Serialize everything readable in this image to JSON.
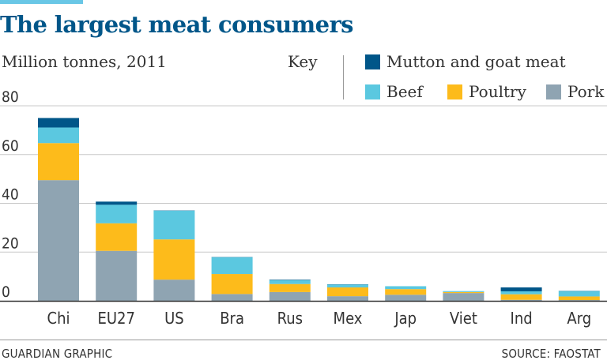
{
  "header": {
    "title": "The largest meat consumers",
    "subtitle": "Million tonnes, 2011",
    "key_label": "Key"
  },
  "legend": [
    {
      "label": "Mutton and goat meat",
      "color": "#005689"
    },
    {
      "label": "Beef",
      "color": "#5bc8e0"
    },
    {
      "label": "Poultry",
      "color": "#fdbb1b"
    },
    {
      "label": "Pork",
      "color": "#8fa4b2"
    }
  ],
  "footer": {
    "credit": "GUARDIAN GRAPHIC",
    "source": "SOURCE: FAOSTAT"
  },
  "chart_data": {
    "type": "bar",
    "stacked": true,
    "categories": [
      "Chi",
      "EU27",
      "US",
      "Bra",
      "Rus",
      "Mex",
      "Jap",
      "Viet",
      "Ind",
      "Arg"
    ],
    "series": [
      {
        "name": "Pork",
        "color": "#8fa4b2",
        "values": [
          49.5,
          20.5,
          8.7,
          2.8,
          3.6,
          1.9,
          2.5,
          3.2,
          0.4,
          0.3
        ]
      },
      {
        "name": "Poultry",
        "color": "#fdbb1b",
        "values": [
          15.2,
          11.3,
          16.5,
          8.2,
          3.3,
          3.6,
          2.3,
          0.4,
          2.3,
          1.5
        ]
      },
      {
        "name": "Beef",
        "color": "#5bc8e0",
        "values": [
          6.4,
          7.6,
          11.8,
          6.9,
          1.6,
          1.2,
          1.2,
          0.4,
          1.2,
          2.2
        ]
      },
      {
        "name": "Mutton and goat meat",
        "color": "#005689",
        "values": [
          3.9,
          1.3,
          0.1,
          0.1,
          0.2,
          0.1,
          0.0,
          0.0,
          1.6,
          0.1
        ]
      }
    ],
    "yticks": [
      0,
      20,
      40,
      60,
      80
    ],
    "ylim": [
      0,
      80
    ],
    "grid": true,
    "gridline_color": "#c8c8c8",
    "axis_color": "#333333"
  }
}
